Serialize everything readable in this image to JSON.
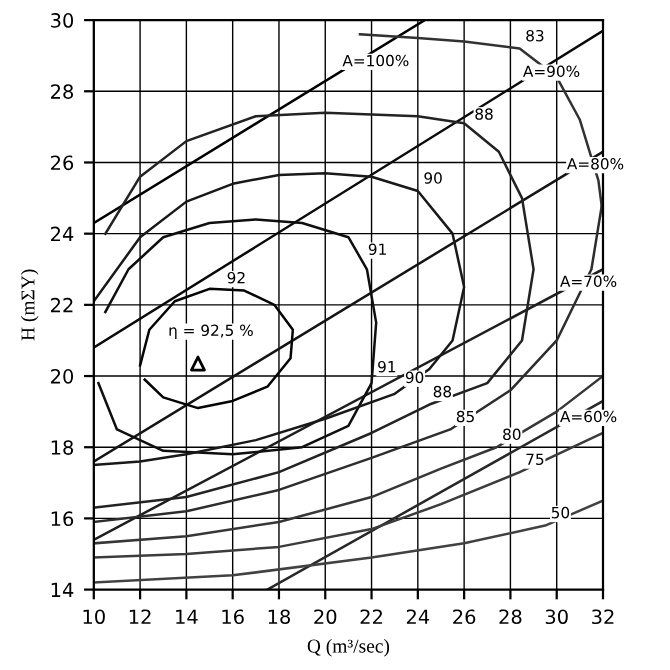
{
  "chart_data": {
    "type": "line",
    "xlabel": "Q (m³/sec)",
    "ylabel": "H (mΣY)",
    "xlim": [
      10,
      32
    ],
    "ylim": [
      14,
      30
    ],
    "xticks": [
      10,
      12,
      14,
      16,
      18,
      20,
      22,
      24,
      26,
      28,
      30,
      32
    ],
    "yticks": [
      14,
      16,
      18,
      20,
      22,
      24,
      26,
      28,
      30
    ],
    "grid": true,
    "legend": false,
    "marker": "none",
    "line_style": "solid",
    "series": [
      {
        "color": "#000000",
        "x": [
          10,
          24.3
        ],
        "values": [
          24.3,
          30
        ]
      },
      {
        "color": "#0a0a0a",
        "x": [
          10,
          32
        ],
        "values": [
          20.8,
          29.7
        ]
      },
      {
        "color": "#141414",
        "x": [
          10,
          32
        ],
        "values": [
          17.6,
          26.3
        ]
      },
      {
        "color": "#1e1e1e",
        "x": [
          10,
          32
        ],
        "values": [
          15.4,
          23.0
        ]
      },
      {
        "color": "#282828",
        "x": [
          17.5,
          32
        ],
        "values": [
          14,
          19.3
        ]
      },
      {
        "color": "#050505",
        "x": [
          12.0,
          12.4,
          13.5,
          15,
          16.5,
          17.8,
          18.6,
          18.5,
          17.5,
          16,
          14.5,
          13,
          12.2
        ],
        "values": [
          20.3,
          21.3,
          22.1,
          22.45,
          22.4,
          22.0,
          21.3,
          20.5,
          19.7,
          19.3,
          19.1,
          19.4,
          19.9
        ]
      },
      {
        "color": "#0f0f0f",
        "x": [
          10.5,
          11.5,
          13,
          15,
          17,
          19,
          21,
          21.8,
          22.2,
          22.0,
          21,
          19,
          16,
          13,
          11,
          10.2
        ],
        "values": [
          21.8,
          23.0,
          23.9,
          24.3,
          24.4,
          24.3,
          23.9,
          23.0,
          21.5,
          19.8,
          18.6,
          18.0,
          17.8,
          17.9,
          18.5,
          19.8
        ]
      },
      {
        "color": "#191919",
        "x": [
          10,
          12,
          14,
          16,
          18,
          20,
          22,
          24,
          25.5,
          26,
          25.5,
          24.5,
          23,
          20,
          17,
          14,
          12,
          10
        ],
        "values": [
          22.1,
          23.9,
          24.9,
          25.4,
          25.65,
          25.7,
          25.6,
          25.2,
          24,
          22.5,
          21,
          20.2,
          19.5,
          18.8,
          18.2,
          17.8,
          17.6,
          17.5
        ]
      },
      {
        "color": "#232323",
        "x": [
          10.5,
          12,
          14,
          17,
          20,
          22,
          24,
          26,
          27.5,
          28.5,
          29,
          28.5,
          27,
          24.5,
          22,
          18,
          14,
          10
        ],
        "values": [
          24.0,
          25.6,
          26.6,
          27.3,
          27.4,
          27.35,
          27.3,
          27.1,
          26.3,
          25,
          23,
          21,
          19.8,
          19.2,
          18.4,
          17.3,
          16.6,
          16.3
        ]
      },
      {
        "color": "#2d2d2d",
        "x": [
          10,
          14,
          18,
          22,
          25.4,
          28,
          30,
          31.5,
          32
        ],
        "values": [
          15.9,
          16.2,
          16.8,
          17.7,
          18.5,
          19.6,
          21,
          23,
          25
        ]
      },
      {
        "color": "#323232",
        "x": [
          21.5,
          24,
          26,
          28.4,
          30,
          31,
          31.8,
          32
        ],
        "values": [
          29.6,
          29.5,
          29.4,
          29.2,
          28.4,
          27.2,
          25.5,
          24.5
        ]
      },
      {
        "color": "#373737",
        "x": [
          10,
          14,
          18,
          22,
          25,
          27.4,
          30,
          32
        ],
        "values": [
          15.3,
          15.5,
          15.9,
          16.6,
          17.4,
          18.0,
          19.0,
          20.0
        ]
      },
      {
        "color": "#3c3c3c",
        "x": [
          10,
          14,
          18,
          22,
          25,
          28.4,
          32
        ],
        "values": [
          14.9,
          15.0,
          15.2,
          15.7,
          16.4,
          17.3,
          18.4
        ]
      },
      {
        "color": "#414141",
        "x": [
          10,
          16,
          22,
          26,
          29.5,
          32
        ],
        "values": [
          14.2,
          14.4,
          14.9,
          15.3,
          15.8,
          16.5
        ]
      },
      {
        "type": "scatter",
        "marker": "triangle",
        "color": "#000000",
        "x": [
          14.5
        ],
        "values": [
          20.35
        ]
      }
    ],
    "annotations": [
      {
        "text": "A=100%",
        "x": 20.5,
        "y": 28.5
      },
      {
        "text": "A=90%",
        "x": 28.3,
        "y": 28.2
      },
      {
        "text": "A=80%",
        "x": 30.2,
        "y": 25.6
      },
      {
        "text": "A=70%",
        "x": 29.9,
        "y": 22.3
      },
      {
        "text": "A=60%",
        "x": 29.9,
        "y": 18.5
      },
      {
        "text": "83",
        "x": 28.4,
        "y": 29.2
      },
      {
        "text": "88",
        "x": 26.2,
        "y": 27.0
      },
      {
        "text": "90",
        "x": 24.0,
        "y": 25.2
      },
      {
        "text": "91",
        "x": 21.6,
        "y": 23.2
      },
      {
        "text": "92",
        "x": 15.5,
        "y": 22.4
      },
      {
        "text": "91",
        "x": 22.0,
        "y": 19.9
      },
      {
        "text": "90",
        "x": 23.2,
        "y": 19.6
      },
      {
        "text": "88",
        "x": 24.4,
        "y": 19.2
      },
      {
        "text": "85",
        "x": 25.4,
        "y": 18.5
      },
      {
        "text": "80",
        "x": 27.4,
        "y": 18.0
      },
      {
        "text": "75",
        "x": 28.4,
        "y": 17.3
      },
      {
        "text": "50",
        "x": 29.5,
        "y": 15.8
      },
      "η = 92,5 %"
    ]
  }
}
